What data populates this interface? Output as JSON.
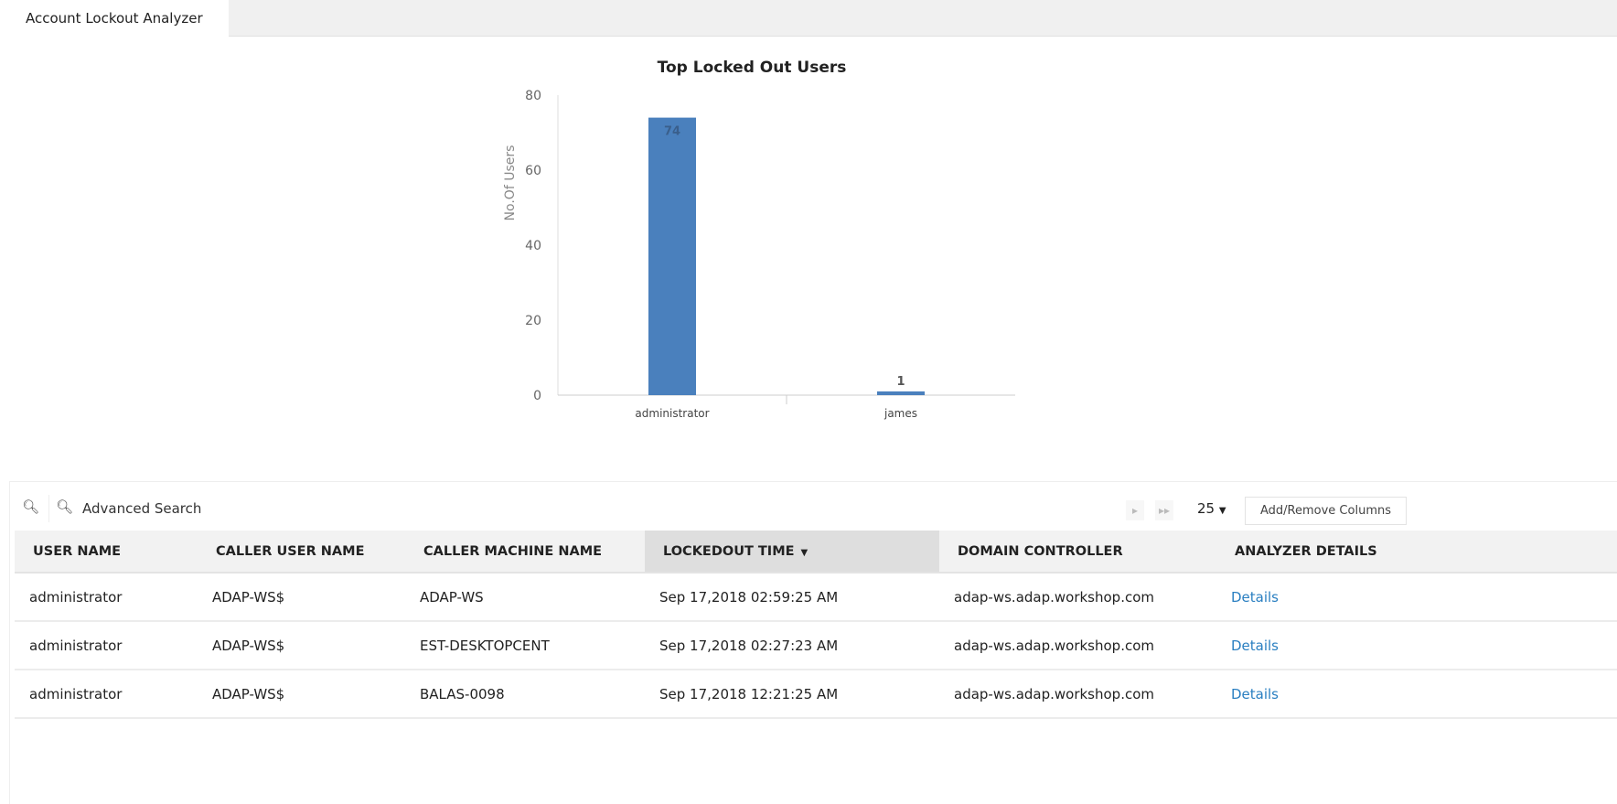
{
  "tab": {
    "label": "Account Lockout Analyzer"
  },
  "chart_data": {
    "type": "bar",
    "title": "Top Locked Out Users",
    "xlabel": "",
    "ylabel": "No.Of Users",
    "categories": [
      "administrator",
      "james"
    ],
    "values": [
      74,
      1
    ],
    "ylim": [
      0,
      80
    ],
    "yticks": [
      0,
      20,
      40,
      60,
      80
    ],
    "grid": false,
    "bar_color": "#4a80bd",
    "data_labels": true
  },
  "toolbar": {
    "search_icon": "search-icon",
    "advanced_search_label": "Advanced Search",
    "per_page": "25",
    "add_remove_columns": "Add/Remove Columns"
  },
  "table": {
    "columns": [
      "USER NAME",
      "CALLER USER NAME",
      "CALLER MACHINE NAME",
      "LOCKEDOUT TIME",
      "DOMAIN CONTROLLER",
      "ANALYZER DETAILS"
    ],
    "sorted_column": "LOCKEDOUT TIME",
    "rows": [
      [
        "administrator",
        "ADAP-WS$",
        "ADAP-WS",
        "Sep 17,2018 02:59:25 AM",
        "adap-ws.adap.workshop.com",
        "Details"
      ],
      [
        "administrator",
        "ADAP-WS$",
        "EST-DESKTOPCENT",
        "Sep 17,2018 02:27:23 AM",
        "adap-ws.adap.workshop.com",
        "Details"
      ],
      [
        "administrator",
        "ADAP-WS$",
        "BALAS-0098",
        "Sep 17,2018 12:21:25 AM",
        "adap-ws.adap.workshop.com",
        "Details"
      ]
    ]
  }
}
